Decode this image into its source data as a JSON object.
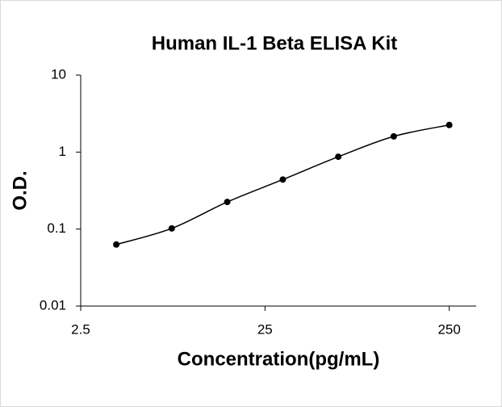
{
  "chart_data": {
    "type": "scatter",
    "title": "Human IL-1 Beta ELISA Kit",
    "x_label": "Concentration(pg/mL)",
    "y_label": "O.D.",
    "x": [
      3.9,
      7.8,
      15.6,
      31.25,
      62.5,
      125,
      250
    ],
    "values": [
      0.063,
      0.102,
      0.225,
      0.44,
      0.87,
      1.6,
      2.25
    ],
    "color": "#000000",
    "fit_curve": true,
    "x_log": true,
    "y_log": true,
    "xlim": [
      2.5,
      350
    ],
    "xticks": [
      2.5,
      25,
      250
    ],
    "ylim": [
      0.01,
      10
    ],
    "yticks": [
      0.01,
      0.1,
      1,
      10
    ]
  }
}
